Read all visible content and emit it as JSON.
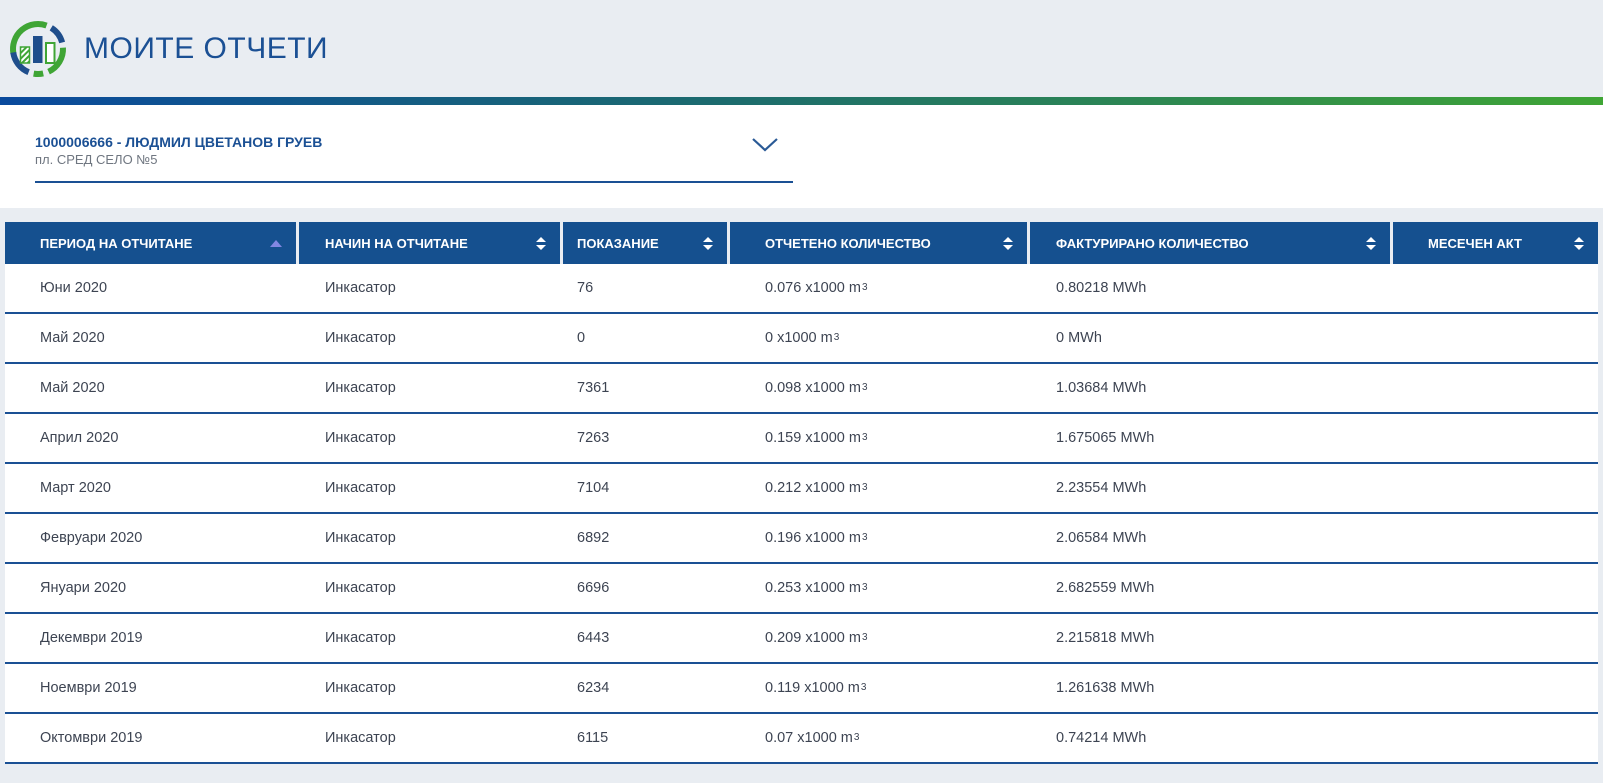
{
  "header": {
    "title": "МОИТЕ ОТЧЕТИ"
  },
  "account_selector": {
    "account": "1000006666 - ЛЮДМИЛ ЦВЕТАНОВ ГРУЕВ",
    "address": "пл. СРЕД СЕЛО №5"
  },
  "table": {
    "volume_unit": " x1000 m",
    "volume_sup": "3",
    "columns": [
      {
        "id": "period",
        "label": "ПЕРИОД НА ОТЧИТАНЕ",
        "sort": "asc"
      },
      {
        "id": "method",
        "label": "НАЧИН НА ОТЧИТАНЕ",
        "sort": "both"
      },
      {
        "id": "reading",
        "label": "ПОКАЗАНИЕ",
        "sort": "both"
      },
      {
        "id": "measured",
        "label": "ОТЧЕТЕНО КОЛИЧЕСТВО",
        "sort": "both"
      },
      {
        "id": "billed",
        "label": "ФАКТУРИРАНО КОЛИЧЕСТВО",
        "sort": "both"
      },
      {
        "id": "monthly-act",
        "label": "МЕСЕЧЕН АКТ",
        "sort": "both"
      }
    ],
    "rows": [
      {
        "period": "Юни 2020",
        "method": "Инкасатор",
        "reading": "76",
        "measured": "0.076",
        "billed": "0.80218 MWh",
        "monthly_act": ""
      },
      {
        "period": "Май 2020",
        "method": "Инкасатор",
        "reading": "0",
        "measured": "0",
        "billed": "0 MWh",
        "monthly_act": ""
      },
      {
        "period": "Май 2020",
        "method": "Инкасатор",
        "reading": "7361",
        "measured": "0.098",
        "billed": "1.03684 MWh",
        "monthly_act": ""
      },
      {
        "period": "Април 2020",
        "method": "Инкасатор",
        "reading": "7263",
        "measured": "0.159",
        "billed": "1.675065 MWh",
        "monthly_act": ""
      },
      {
        "period": "Март 2020",
        "method": "Инкасатор",
        "reading": "7104",
        "measured": "0.212",
        "billed": "2.23554 MWh",
        "monthly_act": ""
      },
      {
        "period": "Февруари 2020",
        "method": "Инкасатор",
        "reading": "6892",
        "measured": "0.196",
        "billed": "2.06584 MWh",
        "monthly_act": ""
      },
      {
        "period": "Януари 2020",
        "method": "Инкасатор",
        "reading": "6696",
        "measured": "0.253",
        "billed": "2.682559 MWh",
        "monthly_act": ""
      },
      {
        "period": "Декември 2019",
        "method": "Инкасатор",
        "reading": "6443",
        "measured": "0.209",
        "billed": "2.215818 MWh",
        "monthly_act": ""
      },
      {
        "period": "Ноември 2019",
        "method": "Инкасатор",
        "reading": "6234",
        "measured": "0.119",
        "billed": "1.261638 MWh",
        "monthly_act": ""
      },
      {
        "period": "Октомври 2019",
        "method": "Инкасатор",
        "reading": "6115",
        "measured": "0.07",
        "billed": "0.74214 MWh",
        "monthly_act": ""
      }
    ]
  },
  "colors": {
    "brand-blue": "#1b5094",
    "brand-green": "#3fa535",
    "thead-bg": "#15508f",
    "separator": "#1a5094",
    "sort-active": "#8287e2",
    "page-gray": "#e9edf2",
    "cell-text": "#3d4452"
  }
}
